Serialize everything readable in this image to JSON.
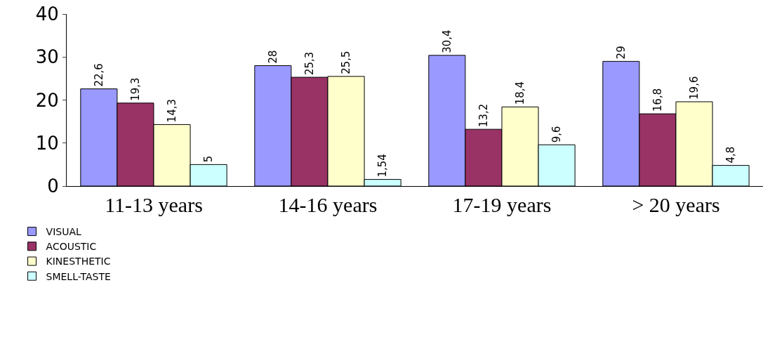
{
  "chart_data": {
    "type": "bar",
    "categories": [
      "11-13 years",
      "14-16 years",
      "17-19 years",
      "> 20 years"
    ],
    "series": [
      {
        "name": "VISUAL",
        "color": "#9999ff",
        "values": [
          22.6,
          28,
          30.4,
          29
        ],
        "value_labels": [
          "22,6",
          "28",
          "30,4",
          "29"
        ]
      },
      {
        "name": "ACOUSTIC",
        "color": "#993366",
        "values": [
          19.3,
          25.3,
          13.2,
          16.8
        ],
        "value_labels": [
          "19,3",
          "25,3",
          "13,2",
          "16,8"
        ]
      },
      {
        "name": "KINESTHETIC",
        "color": "#ffffcc",
        "values": [
          14.3,
          25.5,
          18.4,
          19.6
        ],
        "value_labels": [
          "14,3",
          "25,5",
          "18,4",
          "19,6"
        ]
      },
      {
        "name": "SMELL-TASTE",
        "color": "#ccffff",
        "values": [
          5,
          1.54,
          9.6,
          4.8
        ],
        "value_labels": [
          "5",
          "1,54",
          "9,6",
          "4,8"
        ]
      }
    ],
    "ylim": [
      0,
      40
    ],
    "yticks": [
      0,
      10,
      20,
      30,
      40
    ],
    "grid": false,
    "legend": "bottom left"
  }
}
